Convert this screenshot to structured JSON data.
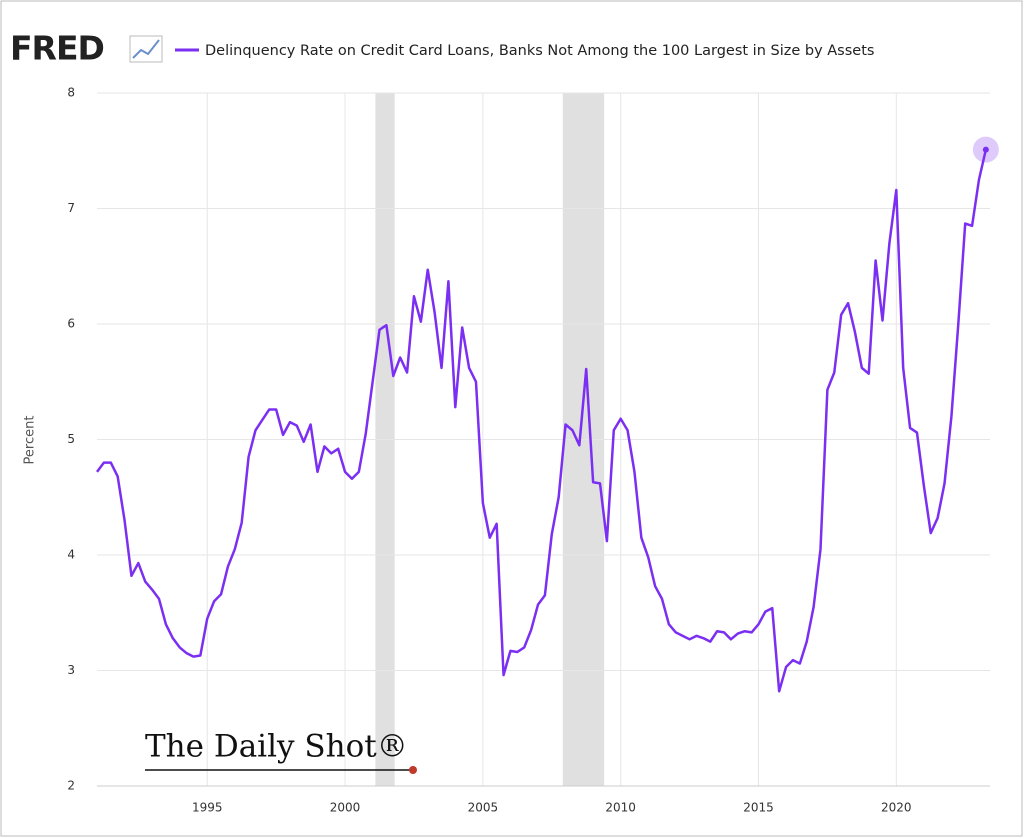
{
  "chart_data": {
    "type": "line",
    "logo": "FRED",
    "ylabel": "Percent",
    "watermark": "The Daily Shot®",
    "x": [
      1991.0,
      1991.25,
      1991.5,
      1991.75,
      1992.0,
      1992.25,
      1992.5,
      1992.75,
      1993.0,
      1993.25,
      1993.5,
      1993.75,
      1994.0,
      1994.25,
      1994.5,
      1994.75,
      1995.0,
      1995.25,
      1995.5,
      1995.75,
      1996.0,
      1996.25,
      1996.5,
      1996.75,
      1997.0,
      1997.25,
      1997.5,
      1997.75,
      1998.0,
      1998.25,
      1998.5,
      1998.75,
      1999.0,
      1999.25,
      1999.5,
      1999.75,
      2000.0,
      2000.25,
      2000.5,
      2000.75,
      2001.0,
      2001.25,
      2001.5,
      2001.75,
      2002.0,
      2002.25,
      2002.5,
      2002.75,
      2003.0,
      2003.25,
      2003.5,
      2003.75,
      2004.0,
      2004.25,
      2004.5,
      2004.75,
      2005.0,
      2005.25,
      2005.5,
      2005.75,
      2006.0,
      2006.25,
      2006.5,
      2006.75,
      2007.0,
      2007.25,
      2007.5,
      2007.75,
      2008.0,
      2008.25,
      2008.5,
      2008.75,
      2009.0,
      2009.25,
      2009.5,
      2009.75,
      2010.0,
      2010.25,
      2010.5,
      2010.75,
      2011.0,
      2011.25,
      2011.5,
      2011.75,
      2012.0,
      2012.25,
      2012.5,
      2012.75,
      2013.0,
      2013.25,
      2013.5,
      2013.75,
      2014.0,
      2014.25,
      2014.5,
      2014.75,
      2015.0,
      2015.25,
      2015.5,
      2015.75,
      2016.0,
      2016.25,
      2016.5,
      2016.75,
      2017.0,
      2017.25,
      2017.5,
      2017.75,
      2018.0,
      2018.25,
      2018.5,
      2018.75,
      2019.0,
      2019.25,
      2019.5,
      2019.75,
      2020.0,
      2020.25,
      2020.5,
      2020.75,
      2021.0,
      2021.25,
      2021.5,
      2021.75,
      2022.0,
      2022.25,
      2022.5,
      2022.75,
      2023.0,
      2023.25
    ],
    "series": [
      {
        "name": "Delinquency Rate on Credit Card Loans, Banks Not Among the 100 Largest in Size by Assets",
        "color": "#7b2ff2",
        "values": [
          4.72,
          4.8,
          4.8,
          4.68,
          4.3,
          3.82,
          3.93,
          3.77,
          3.7,
          3.62,
          3.4,
          3.28,
          3.2,
          3.15,
          3.12,
          3.13,
          3.45,
          3.6,
          3.66,
          3.9,
          4.05,
          4.28,
          4.85,
          5.08,
          5.17,
          5.26,
          5.26,
          5.04,
          5.15,
          5.12,
          4.98,
          5.13,
          4.72,
          4.94,
          4.88,
          4.92,
          4.72,
          4.66,
          4.72,
          5.05,
          5.5,
          5.95,
          5.99,
          5.55,
          5.71,
          5.58,
          6.24,
          6.02,
          6.47,
          6.1,
          5.62,
          6.37,
          5.28,
          5.97,
          5.62,
          5.5,
          4.45,
          4.15,
          4.27,
          2.96,
          3.17,
          3.16,
          3.2,
          3.35,
          3.57,
          3.65,
          4.18,
          4.5,
          5.13,
          5.08,
          4.95,
          5.61,
          4.63,
          4.62,
          4.12,
          5.08,
          5.18,
          5.08,
          4.72,
          4.15,
          3.98,
          3.73,
          3.62,
          3.4,
          3.33,
          3.3,
          3.27,
          3.3,
          3.28,
          3.25,
          3.34,
          3.33,
          3.27,
          3.32,
          3.34,
          3.33,
          3.4,
          3.51,
          3.54,
          2.82,
          3.03,
          3.09,
          3.06,
          3.25,
          3.55,
          4.05,
          5.43,
          5.58,
          6.08,
          6.18,
          5.93,
          5.62,
          5.57,
          6.55,
          6.03,
          6.7,
          7.16,
          5.62,
          5.1,
          5.06,
          4.6,
          4.19,
          4.32,
          4.62,
          5.2,
          6.0,
          6.87,
          6.85,
          7.25,
          7.51
        ]
      }
    ],
    "recessions": [
      [
        2001.1,
        2001.8
      ],
      [
        2007.9,
        2009.4
      ]
    ],
    "recession_color": "#e0e0e0",
    "xlim": [
      1991,
      2023.4
    ],
    "xticks": [
      1995,
      2000,
      2005,
      2010,
      2015,
      2020
    ],
    "ylim": [
      2,
      8
    ],
    "yticks": [
      2,
      3,
      4,
      5,
      6,
      7,
      8
    ],
    "grid": true
  }
}
